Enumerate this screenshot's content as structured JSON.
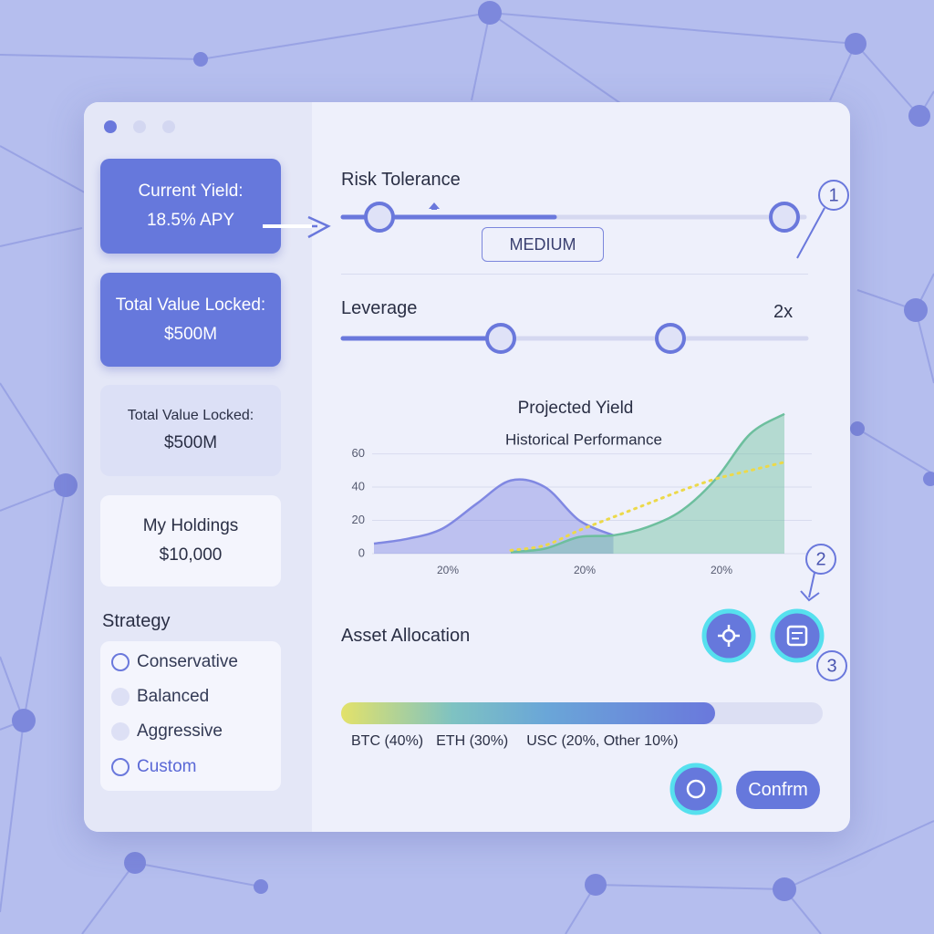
{
  "cards": [
    {
      "label": "Current Yield:",
      "value": "18.5% APY"
    },
    {
      "label": "Total Value Locked:",
      "value": "$500M"
    },
    {
      "label": "Total Value Locked:",
      "value": "$500M"
    },
    {
      "label": "My Holdings",
      "value": "$10,000"
    }
  ],
  "strategy": {
    "title": "Strategy",
    "options": [
      "Conservative",
      "Balanced",
      "Aggressive",
      "Custom"
    ]
  },
  "risk_tolerance": {
    "title": "Risk Tolerance",
    "level": "MEDIUM"
  },
  "leverage": {
    "title": "Leverage",
    "value": "2x"
  },
  "chart_data": {
    "type": "area",
    "title": "Projected Yield",
    "subtitle": "Historical Performance",
    "categories": [
      null,
      null,
      "20%",
      null,
      null,
      null,
      "20%",
      null,
      null,
      null,
      "20%",
      null,
      null
    ],
    "series": [
      {
        "color": "#8088e2",
        "values": [
          6,
          9,
          15,
          30,
          44,
          40,
          20,
          11,
          null,
          null,
          null,
          null,
          null
        ]
      },
      {
        "color": "#6dbf9e",
        "values": [
          null,
          null,
          null,
          null,
          1,
          3,
          10,
          11,
          16,
          26,
          45,
          72,
          84
        ]
      },
      {
        "color": "#ecd94a",
        "line_style": "dotted",
        "values": [
          null,
          null,
          null,
          null,
          2,
          5,
          14,
          22,
          30,
          38,
          45,
          50,
          55
        ]
      }
    ],
    "ylim": [
      0,
      85
    ],
    "yticks": [
      0,
      20,
      40,
      60
    ],
    "grid": true
  },
  "asset_allocation": {
    "title": "Asset Allocation",
    "labels": [
      "BTC (40%)",
      "ETH (30%)",
      "USC (20%, Other 10%)"
    ]
  },
  "badges": [
    "1",
    "2",
    "3"
  ],
  "confirm_button": "Confrm"
}
